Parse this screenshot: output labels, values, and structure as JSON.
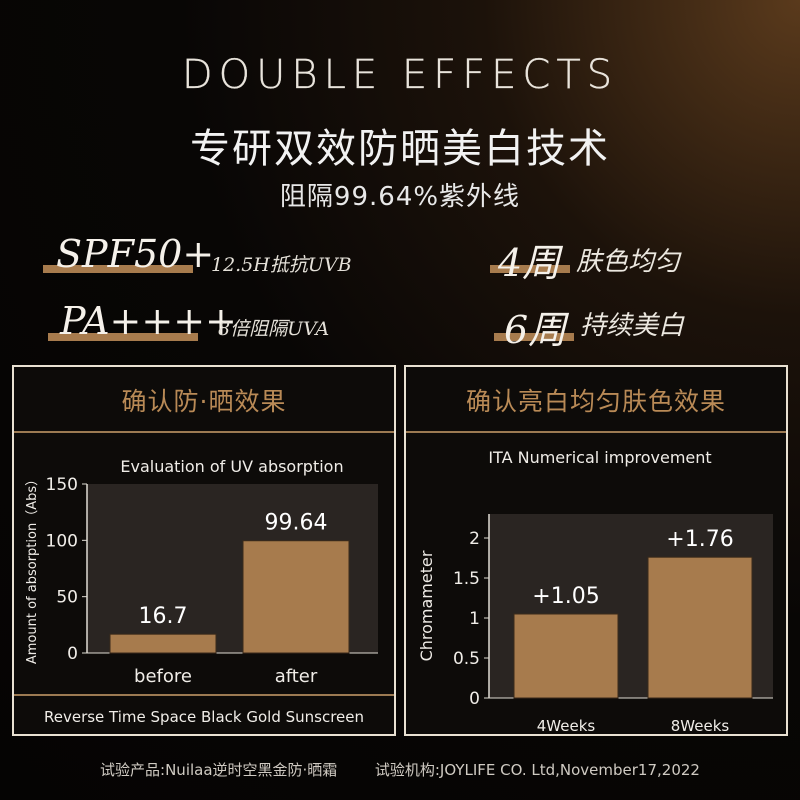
{
  "header": {
    "title": "DOUBLE EFFECTS",
    "subtitle": "专研双效防晒美白技术",
    "caption": "阻隔99.64%紫外线"
  },
  "claims": {
    "spf_big": "SPF50+",
    "spf_small": "12.5H抵抗UVB",
    "pa_big": "PA++++",
    "pa_small": "8倍阻隔UVA",
    "week4_big": "4周",
    "week4_text": "肤色均匀",
    "week6_big": "6周",
    "week6_text": "持续美白"
  },
  "left_panel": {
    "heading": "确认防·晒效果",
    "footer_note": "Reverse Time Space Black Gold Sunscreen"
  },
  "right_panel": {
    "heading": "确认亮白均匀肤色效果"
  },
  "footer": {
    "product": "试验产品:Nuilaa逆时空黑金防·晒霜",
    "institution": "试验机构:JOYLIFE CO. Ltd,November17,2022"
  },
  "colors": {
    "accent": "#a77b4d",
    "heading": "#b98a56",
    "bar": "#a77b4d",
    "chart_bg": "#2a2522",
    "panel_border": "#e9e1d2"
  },
  "chart_data": [
    {
      "type": "bar",
      "title": "Evaluation of UV absorption",
      "ylabel": "Amount of absorption（Abs）",
      "xlabel": "",
      "categories": [
        "before",
        "after"
      ],
      "values": [
        16.7,
        99.64
      ],
      "data_labels": [
        "16.7",
        "99.64"
      ],
      "ylim": [
        0,
        150
      ],
      "yticks": [
        0,
        50,
        100,
        150
      ],
      "grid": false
    },
    {
      "type": "bar",
      "title": "ITA Numerical improvement",
      "ylabel": "Chromameter",
      "xlabel": "",
      "categories": [
        "4Weeks",
        "8Weeks"
      ],
      "values": [
        1.05,
        1.76
      ],
      "data_labels": [
        "+1.05",
        "+1.76"
      ],
      "ylim": [
        0,
        2.3
      ],
      "yticks": [
        "0",
        "0.5",
        "1",
        "1.5",
        "2"
      ],
      "grid": false
    }
  ]
}
